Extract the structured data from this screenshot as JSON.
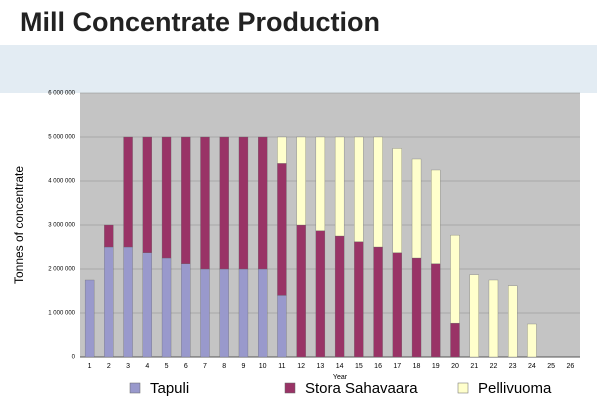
{
  "chart_data": {
    "type": "stacked-bar",
    "title": "Mill Concentrate Production",
    "x_label": "Year",
    "y_label": "Tonnes of concentrate",
    "categories": [
      "1",
      "2",
      "3",
      "4",
      "5",
      "6",
      "7",
      "8",
      "9",
      "10",
      "11",
      "12",
      "13",
      "14",
      "15",
      "16",
      "17",
      "18",
      "19",
      "20",
      "21",
      "22",
      "23",
      "24",
      "25",
      "26"
    ],
    "series": [
      {
        "name": "Tapuli",
        "color": "#9999cc",
        "values": [
          1750000,
          2500000,
          2500000,
          2370000,
          2250000,
          2120000,
          2000000,
          2000000,
          2000000,
          2000000,
          1400000,
          null,
          null,
          null,
          null,
          null,
          null,
          null,
          null,
          null,
          null,
          null,
          null,
          null,
          null,
          null
        ]
      },
      {
        "name": "Stora Sahavaara",
        "color": "#993366",
        "values": [
          null,
          500000,
          2500000,
          2630000,
          2750000,
          2880000,
          3000000,
          3000000,
          3000000,
          3000000,
          3000000,
          3000000,
          2870000,
          2750000,
          2620000,
          2500000,
          2370000,
          2250000,
          2120000,
          770000,
          null,
          null,
          null,
          null,
          null,
          null
        ]
      },
      {
        "name": "Pellivuoma",
        "color": "#ffffcc",
        "values": [
          null,
          null,
          null,
          null,
          null,
          null,
          null,
          null,
          null,
          null,
          600000,
          2000000,
          2130000,
          2250000,
          2380000,
          2500000,
          2370000,
          2250000,
          2130000,
          2000000,
          1870000,
          1750000,
          1620000,
          750000,
          null,
          null
        ]
      }
    ],
    "ylim": [
      0,
      6000000
    ],
    "yticks": [
      0,
      {
        "value": 1000000,
        "label": "1 000 000"
      },
      {
        "value": 2000000,
        "label": "2 000 000"
      },
      {
        "value": 3000000,
        "label": "3 000 000"
      },
      {
        "value": 4000000,
        "label": "4 000 000"
      },
      {
        "value": 5000000,
        "label": "5 000 000"
      },
      {
        "value": 6000000,
        "label": "6 000 000"
      }
    ],
    "grid": true,
    "legend": "bottom"
  }
}
